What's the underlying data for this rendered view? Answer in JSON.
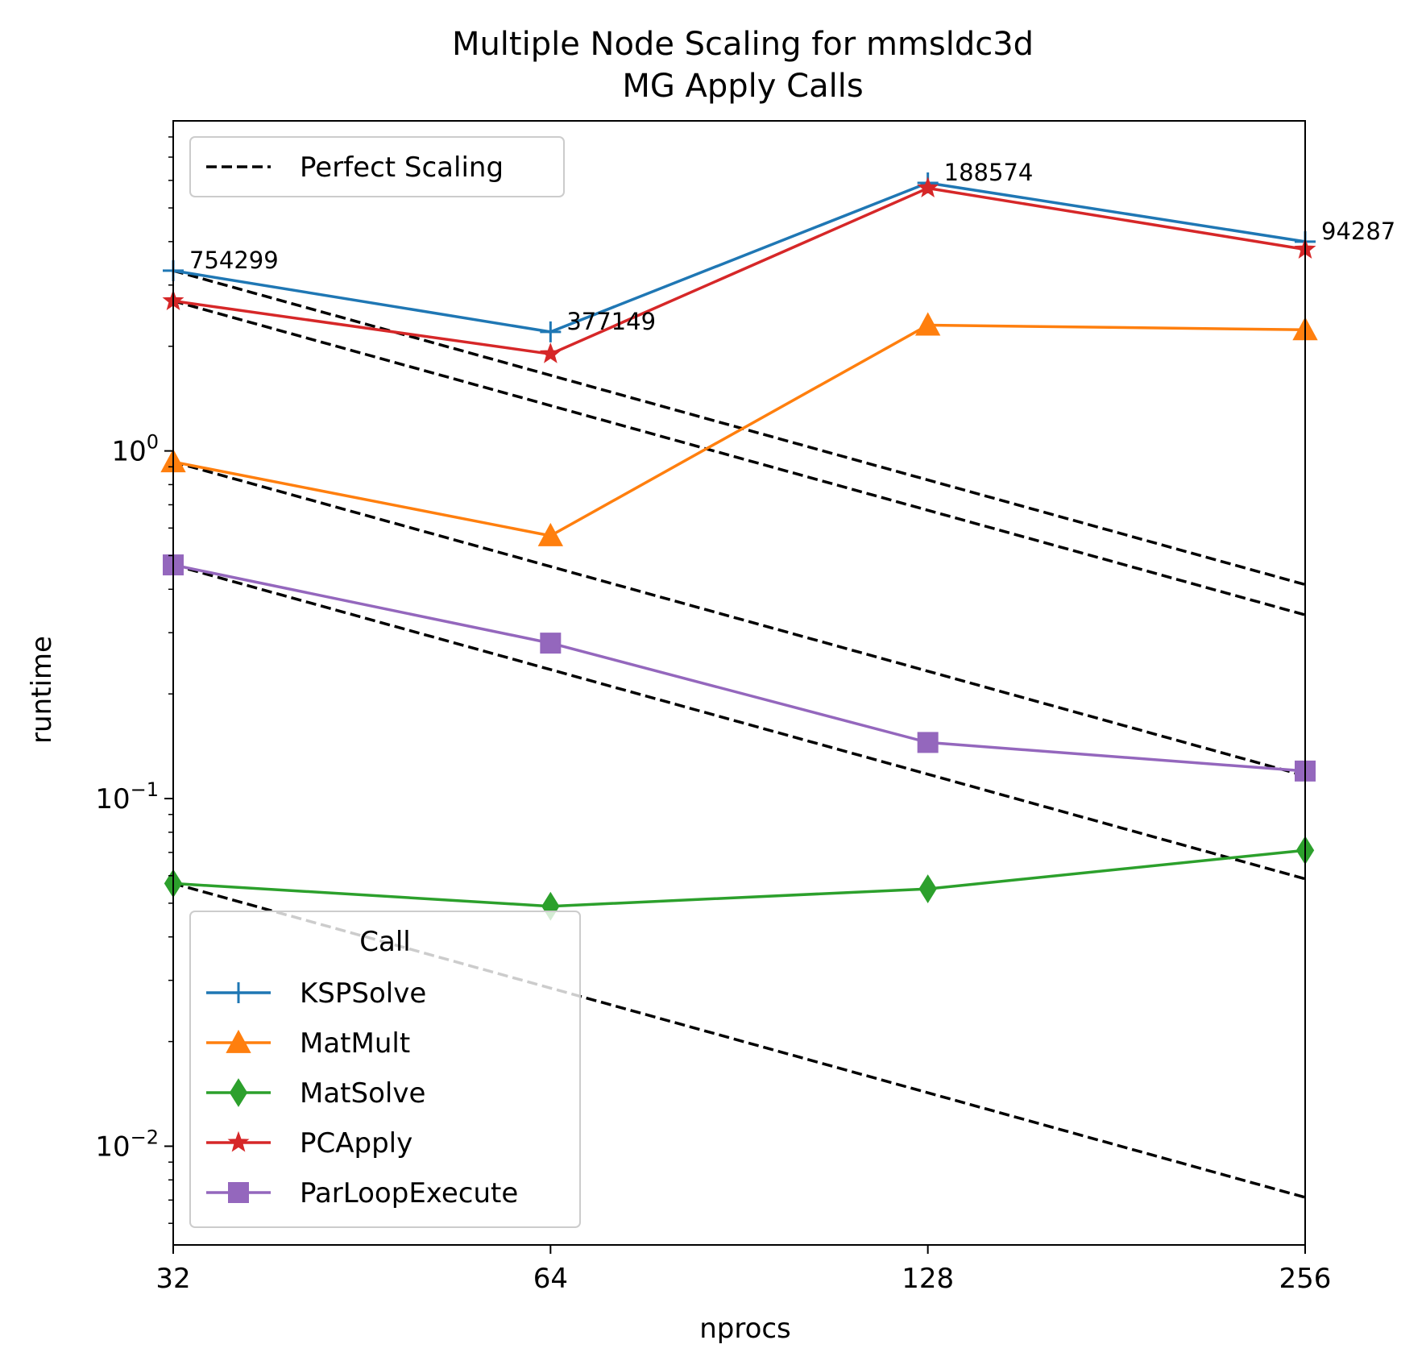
{
  "chart_data": {
    "type": "line",
    "title": "Multiple Node Scaling for mmsldc3d",
    "subtitle": "MG Apply Calls",
    "xlabel": "nprocs",
    "ylabel": "runtime",
    "x_scale": "log2",
    "y_scale": "log10",
    "x": [
      32,
      64,
      128,
      256
    ],
    "x_tick_labels": [
      "32",
      "64",
      "128",
      "256"
    ],
    "ylim": [
      0.0052,
      8.9
    ],
    "y_ticks": [
      {
        "value": 1,
        "base": "10",
        "exp": "0"
      },
      {
        "value": 0.1,
        "base": "10",
        "exp": "−1"
      },
      {
        "value": 0.01,
        "base": "10",
        "exp": "−2"
      }
    ],
    "grid": false,
    "legend_title": "Call",
    "legend_position": "lower-left",
    "reference_legend_position": "upper-left",
    "reference_label": "Perfect Scaling",
    "series": [
      {
        "name": "KSPSolve",
        "color": "#1f77b4",
        "marker": "plus",
        "values": [
          3.3,
          2.2,
          5.9,
          4.0
        ]
      },
      {
        "name": "MatMult",
        "color": "#ff7f0e",
        "marker": "triangle",
        "values": [
          0.93,
          0.57,
          2.3,
          2.23
        ]
      },
      {
        "name": "MatSolve",
        "color": "#2ca02c",
        "marker": "diamond",
        "values": [
          0.057,
          0.049,
          0.055,
          0.071
        ]
      },
      {
        "name": "PCApply",
        "color": "#d62728",
        "marker": "star",
        "values": [
          2.7,
          1.9,
          5.7,
          3.8
        ]
      },
      {
        "name": "ParLoopExecute",
        "color": "#9467bd",
        "marker": "square",
        "values": [
          0.47,
          0.28,
          0.145,
          0.12
        ]
      }
    ],
    "annotations": [
      {
        "text": "754299",
        "x": 32,
        "y": 3.3
      },
      {
        "text": "377149",
        "x": 64,
        "y": 2.2
      },
      {
        "text": "188574",
        "x": 128,
        "y": 5.9
      },
      {
        "text": "94287",
        "x": 256,
        "y": 4.0
      }
    ]
  }
}
